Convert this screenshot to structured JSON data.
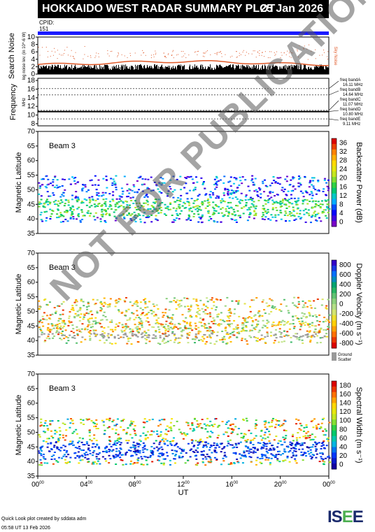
{
  "header": {
    "title": "HOKKAIDO WEST RADAR SUMMARY PLOT",
    "date": "25 Jan 2026"
  },
  "cpid": {
    "label": "CPID:",
    "value": "151"
  },
  "noise_panel": {
    "ylabel": "Search Noise",
    "ylabel2": "log noise lev. (in 10^-6 W)",
    "yticks": [
      "10",
      "8",
      "6",
      "4",
      "2",
      "0"
    ],
    "legend": "Sky Noise",
    "color": "#e05a2a"
  },
  "freq_panel": {
    "ylabel": "Frequency",
    "unit": "MHz",
    "yticks": [
      "18",
      "16",
      "14",
      "12",
      "10",
      "8"
    ],
    "bands": [
      {
        "name": "freq bandA",
        "value": "16.11 MHz",
        "mhz": 16.11
      },
      {
        "name": "freq bandB",
        "value": "14.64 MHz",
        "mhz": 14.64
      },
      {
        "name": "freq bandC",
        "value": "11.07 MHz",
        "mhz": 11.07
      },
      {
        "name": "freq bandD",
        "value": "10.80 MHz",
        "mhz": 10.8
      },
      {
        "name": "freq bandE",
        "value": "9.11 MHz",
        "mhz": 9.11
      }
    ]
  },
  "panels": [
    {
      "beam": "Beam  3",
      "ylabel": "Magnetic Latitude",
      "cbar_label": "Backscatter Power (dB)",
      "cbar_ticks": [
        "36",
        "32",
        "28",
        "24",
        "20",
        "16",
        "12",
        "8",
        "4",
        "0"
      ],
      "cmap": "power"
    },
    {
      "beam": "Beam  3",
      "ylabel": "Magnetic Latitude",
      "cbar_label": "Doppler Velocity (m s⁻¹)",
      "cbar_ticks": [
        "800",
        "600",
        "400",
        "200",
        "0",
        "-200",
        "-400",
        "-600",
        "-800"
      ],
      "cmap": "velocity",
      "ground_label": "Ground",
      "ground_label2": "Scatter"
    },
    {
      "beam": "Beam  3",
      "ylabel": "Magnetic Latitude",
      "cbar_label": "Spectral Width (m s⁻¹)",
      "cbar_ticks": [
        "180",
        "160",
        "140",
        "120",
        "100",
        "80",
        "60",
        "40",
        "20",
        "0"
      ],
      "cmap": "width"
    }
  ],
  "chart_data": {
    "type": "heatmap",
    "xlabel": "UT",
    "x_ticks": [
      "00",
      "04",
      "08",
      "12",
      "16",
      "20",
      "00"
    ],
    "x_tick_sup": "00",
    "xlim_hours": [
      0,
      24
    ],
    "ylim": [
      35,
      70
    ],
    "yticks": [
      "70",
      "65",
      "60",
      "55",
      "50",
      "45",
      "40",
      "35"
    ],
    "scatter_region_lat": [
      39,
      55
    ]
  },
  "footer": {
    "line1": "Quick Look plot created by sddata adm",
    "line2": "05:58 UT 13 Feb 2026"
  },
  "logo": {
    "text1": "IS",
    "text2": "E",
    "text3": "E"
  },
  "watermark": "NOT FOR PUBLICATION"
}
